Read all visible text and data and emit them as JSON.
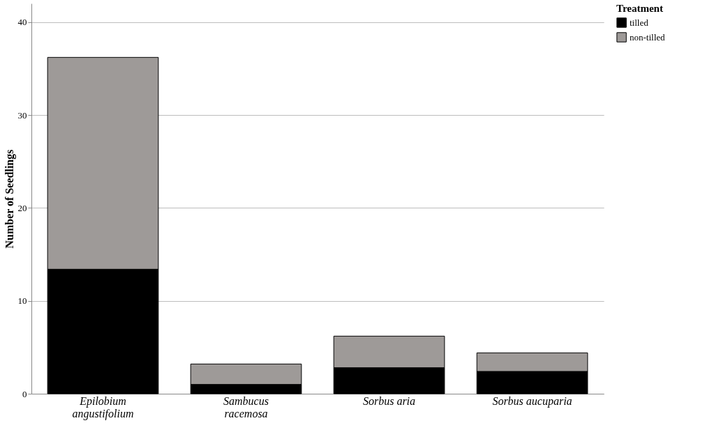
{
  "chart_data": {
    "type": "bar",
    "stacked": true,
    "ylabel": "Number of Seedlings",
    "legend_title": "Treatment",
    "categories": [
      "Epilobium angustifolium",
      "Sambucus racemosa",
      "Sorbus aria",
      "Sorbus aucuparia"
    ],
    "series": [
      {
        "name": "tilled",
        "color": "#000000",
        "values": [
          13.4,
          1.0,
          2.8,
          2.4
        ]
      },
      {
        "name": "non-tilled",
        "color": "#9e9a98",
        "values": [
          22.8,
          2.2,
          3.4,
          2.0
        ]
      }
    ],
    "ylim": [
      0,
      42
    ],
    "yticks": [
      0,
      10,
      20,
      30,
      40
    ],
    "grid": "y",
    "legend": "top right"
  }
}
